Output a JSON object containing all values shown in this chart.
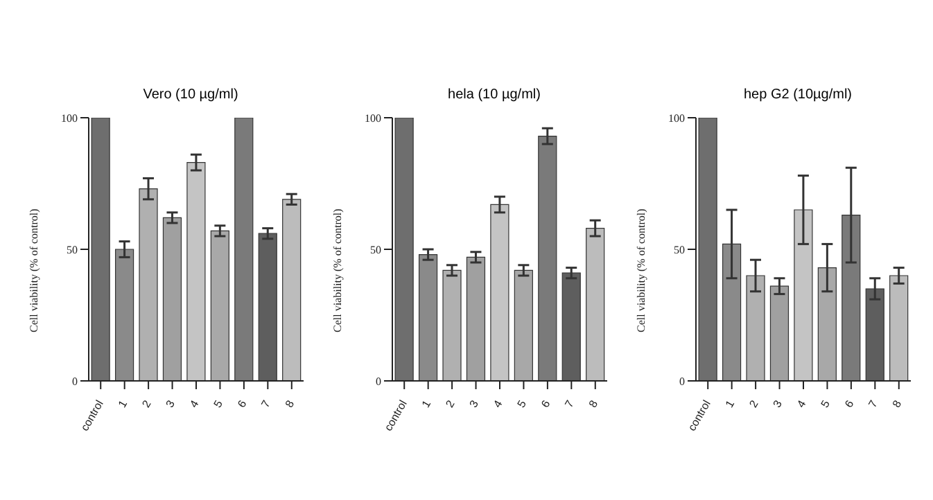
{
  "chart_data": [
    {
      "type": "bar",
      "title": "Vero (10 µg/ml)",
      "ylabel": "Cell viability (% of control)",
      "categories": [
        "control",
        "1",
        "2",
        "3",
        "4",
        "5",
        "6",
        "7",
        "8"
      ],
      "values": [
        100,
        50,
        73,
        62,
        83,
        57,
        100,
        56,
        69
      ],
      "colors": [
        "#6e6e6e",
        "#8a8a8a",
        "#b0b0b0",
        "#a0a0a0",
        "#c4c4c4",
        "#a8a8a8",
        "#7a7a7a",
        "#5e5e5e",
        "#bcbcbc"
      ],
      "errors": [
        null,
        3,
        4,
        2,
        3,
        2,
        null,
        2,
        2
      ],
      "ylim": [
        0,
        100
      ],
      "yticks": [
        0,
        50,
        100
      ],
      "grid": false
    },
    {
      "type": "bar",
      "title": "hela (10 µg/ml)",
      "ylabel": "Cell viability (% of control)",
      "categories": [
        "control",
        "1",
        "2",
        "3",
        "4",
        "5",
        "6",
        "7",
        "8"
      ],
      "values": [
        100,
        48,
        42,
        47,
        67,
        42,
        93,
        41,
        58
      ],
      "colors": [
        "#6e6e6e",
        "#8a8a8a",
        "#b0b0b0",
        "#a0a0a0",
        "#c4c4c4",
        "#a8a8a8",
        "#7a7a7a",
        "#5e5e5e",
        "#bcbcbc"
      ],
      "errors": [
        null,
        2,
        2,
        2,
        3,
        2,
        3,
        2,
        3
      ],
      "ylim": [
        0,
        100
      ],
      "yticks": [
        0,
        50,
        100
      ],
      "grid": false
    },
    {
      "type": "bar",
      "title": "hep G2 (10µg/ml)",
      "ylabel": "Cell viability (% of control)",
      "categories": [
        "control",
        "1",
        "2",
        "3",
        "4",
        "5",
        "6",
        "7",
        "8"
      ],
      "values": [
        100,
        52,
        40,
        36,
        65,
        43,
        63,
        35,
        40
      ],
      "colors": [
        "#6e6e6e",
        "#8a8a8a",
        "#b0b0b0",
        "#a0a0a0",
        "#c4c4c4",
        "#a8a8a8",
        "#7a7a7a",
        "#5e5e5e",
        "#bcbcbc"
      ],
      "errors": [
        null,
        13,
        6,
        3,
        13,
        9,
        18,
        4,
        3
      ],
      "ylim": [
        0,
        100
      ],
      "yticks": [
        0,
        50,
        100
      ],
      "grid": false
    }
  ]
}
